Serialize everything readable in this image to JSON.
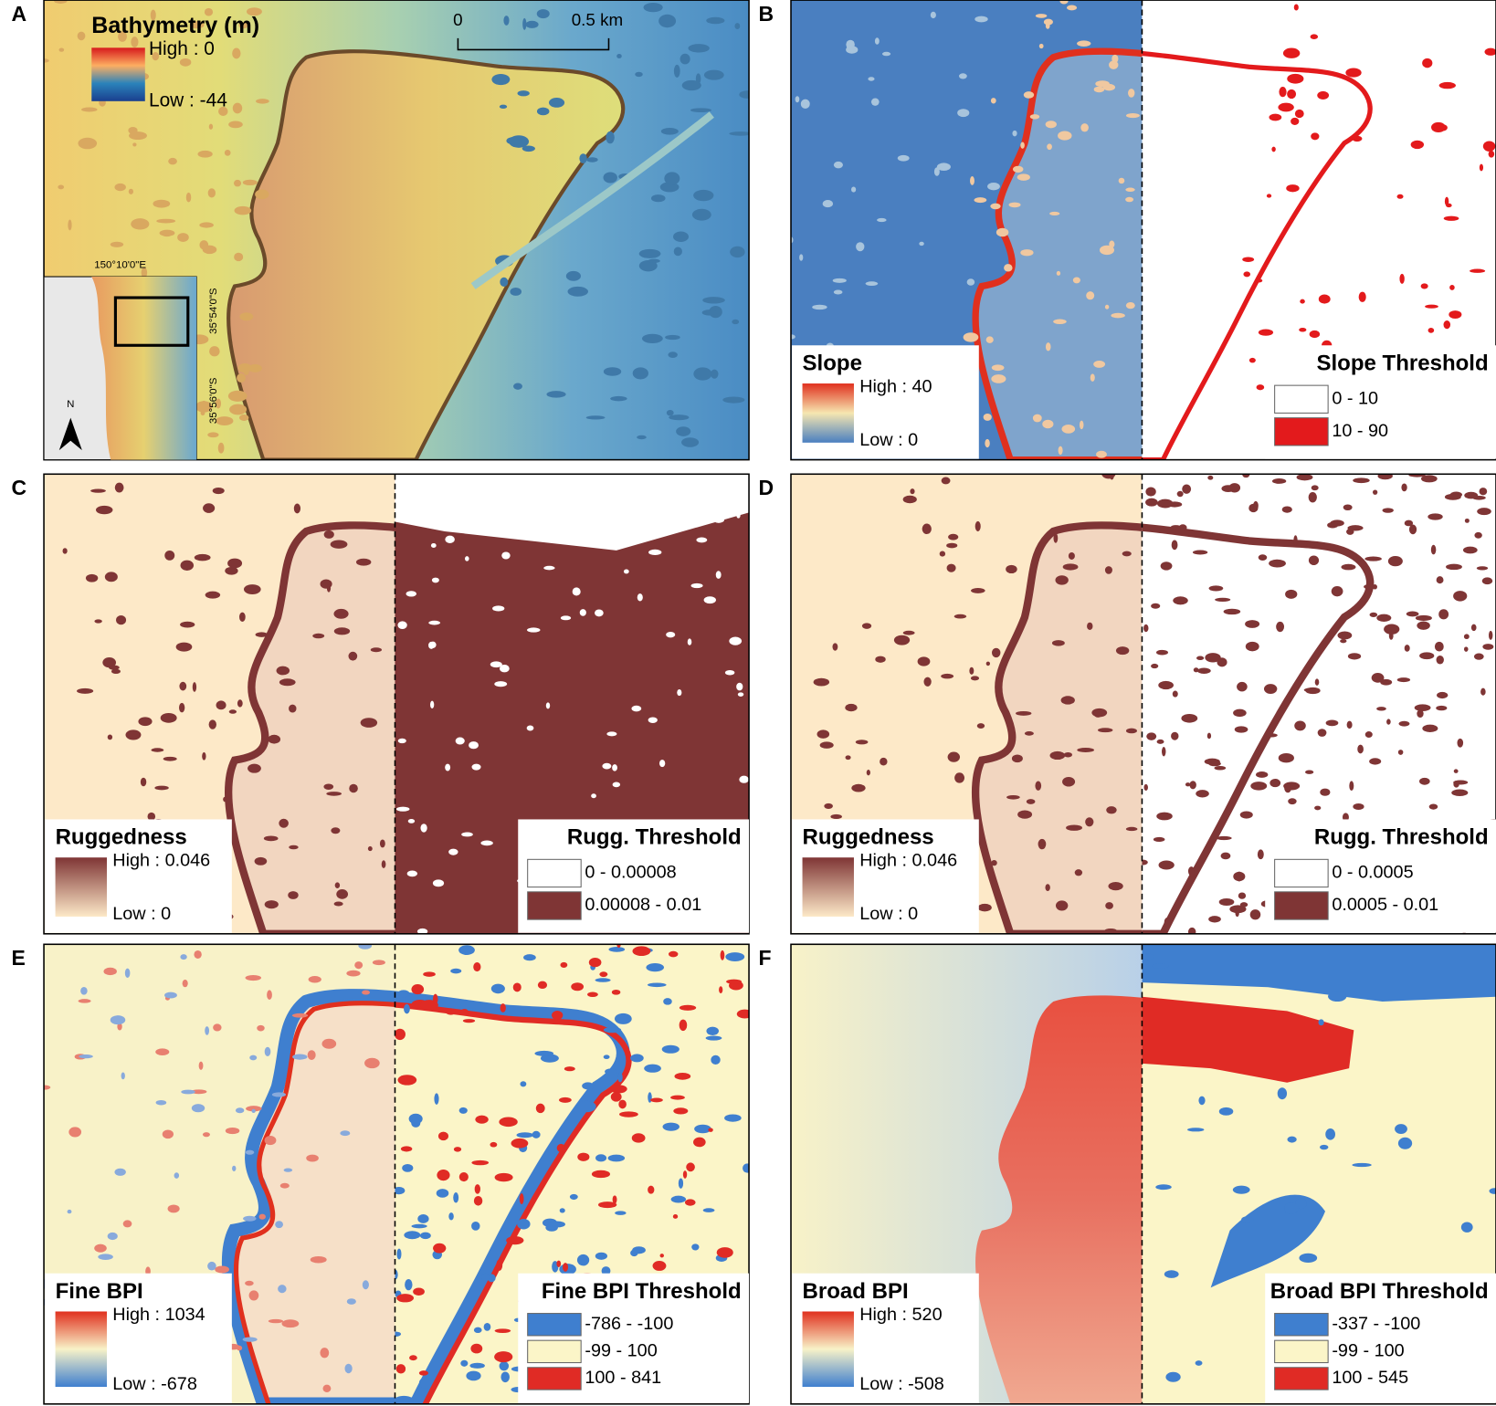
{
  "panels": [
    {
      "letter": "A",
      "legend": {
        "title": "Bathymetry (m)",
        "high": "High : 0",
        "low": "Low : -44",
        "ramp": [
          "#d7191c",
          "#fdae61",
          "#2b83ba",
          "#1a3f8f"
        ]
      },
      "scale_bar": [
        "0",
        "0.5 km"
      ],
      "inset": {
        "labels": [
          "150°10'0\"E",
          "35°54'0\"S",
          "35°56'0\"S"
        ],
        "north": "N"
      }
    },
    {
      "letter": "B",
      "legend": {
        "title": "Slope",
        "high": "High : 40",
        "low": "Low : 0",
        "ramp": [
          "#e0301e",
          "#f6e6b0",
          "#4a7fc0"
        ]
      },
      "threshold": {
        "title": "Slope Threshold",
        "classes": [
          "0 - 10",
          "10 - 90"
        ],
        "class_colors": [
          "#ffffff",
          "#e31a1c"
        ]
      }
    },
    {
      "letter": "C",
      "legend": {
        "title": "Ruggedness",
        "high": "High : 0.046",
        "low": "Low : 0",
        "ramp": [
          "#7f3535",
          "#fde9c8"
        ]
      },
      "threshold": {
        "title": "Rugg. Threshold",
        "classes": [
          "0 - 0.00008",
          "0.00008 - 0.01"
        ],
        "class_colors": [
          "#ffffff",
          "#7f3535"
        ]
      }
    },
    {
      "letter": "D",
      "legend": {
        "title": "Ruggedness",
        "high": "High : 0.046",
        "low": "Low : 0",
        "ramp": [
          "#7f3535",
          "#fde9c8"
        ]
      },
      "threshold": {
        "title": "Rugg. Threshold",
        "classes": [
          "0 - 0.0005",
          "0.0005 - 0.01"
        ],
        "class_colors": [
          "#ffffff",
          "#7f3535"
        ]
      }
    },
    {
      "letter": "E",
      "legend": {
        "title": "Fine BPI",
        "high": "High : 1034",
        "low": "Low : -678",
        "ramp": [
          "#e0301e",
          "#f8f2c8",
          "#3f7fcf"
        ]
      },
      "threshold": {
        "title": "Fine BPI Threshold",
        "classes": [
          "-786 - -100",
          "-99 - 100",
          "100 - 841"
        ],
        "class_colors": [
          "#3f7fcf",
          "#fbf5c8",
          "#e02b25"
        ]
      }
    },
    {
      "letter": "F",
      "legend": {
        "title": "Broad BPI",
        "high": "High : 520",
        "low": "Low : -508",
        "ramp": [
          "#e0301e",
          "#f8f2c8",
          "#3f7fcf"
        ]
      },
      "threshold": {
        "title": "Broad BPI Threshold",
        "classes": [
          "-337 - -100",
          "-99 - 100",
          "100 - 545"
        ],
        "class_colors": [
          "#3f7fcf",
          "#fbf5c8",
          "#e02b25"
        ]
      }
    }
  ]
}
